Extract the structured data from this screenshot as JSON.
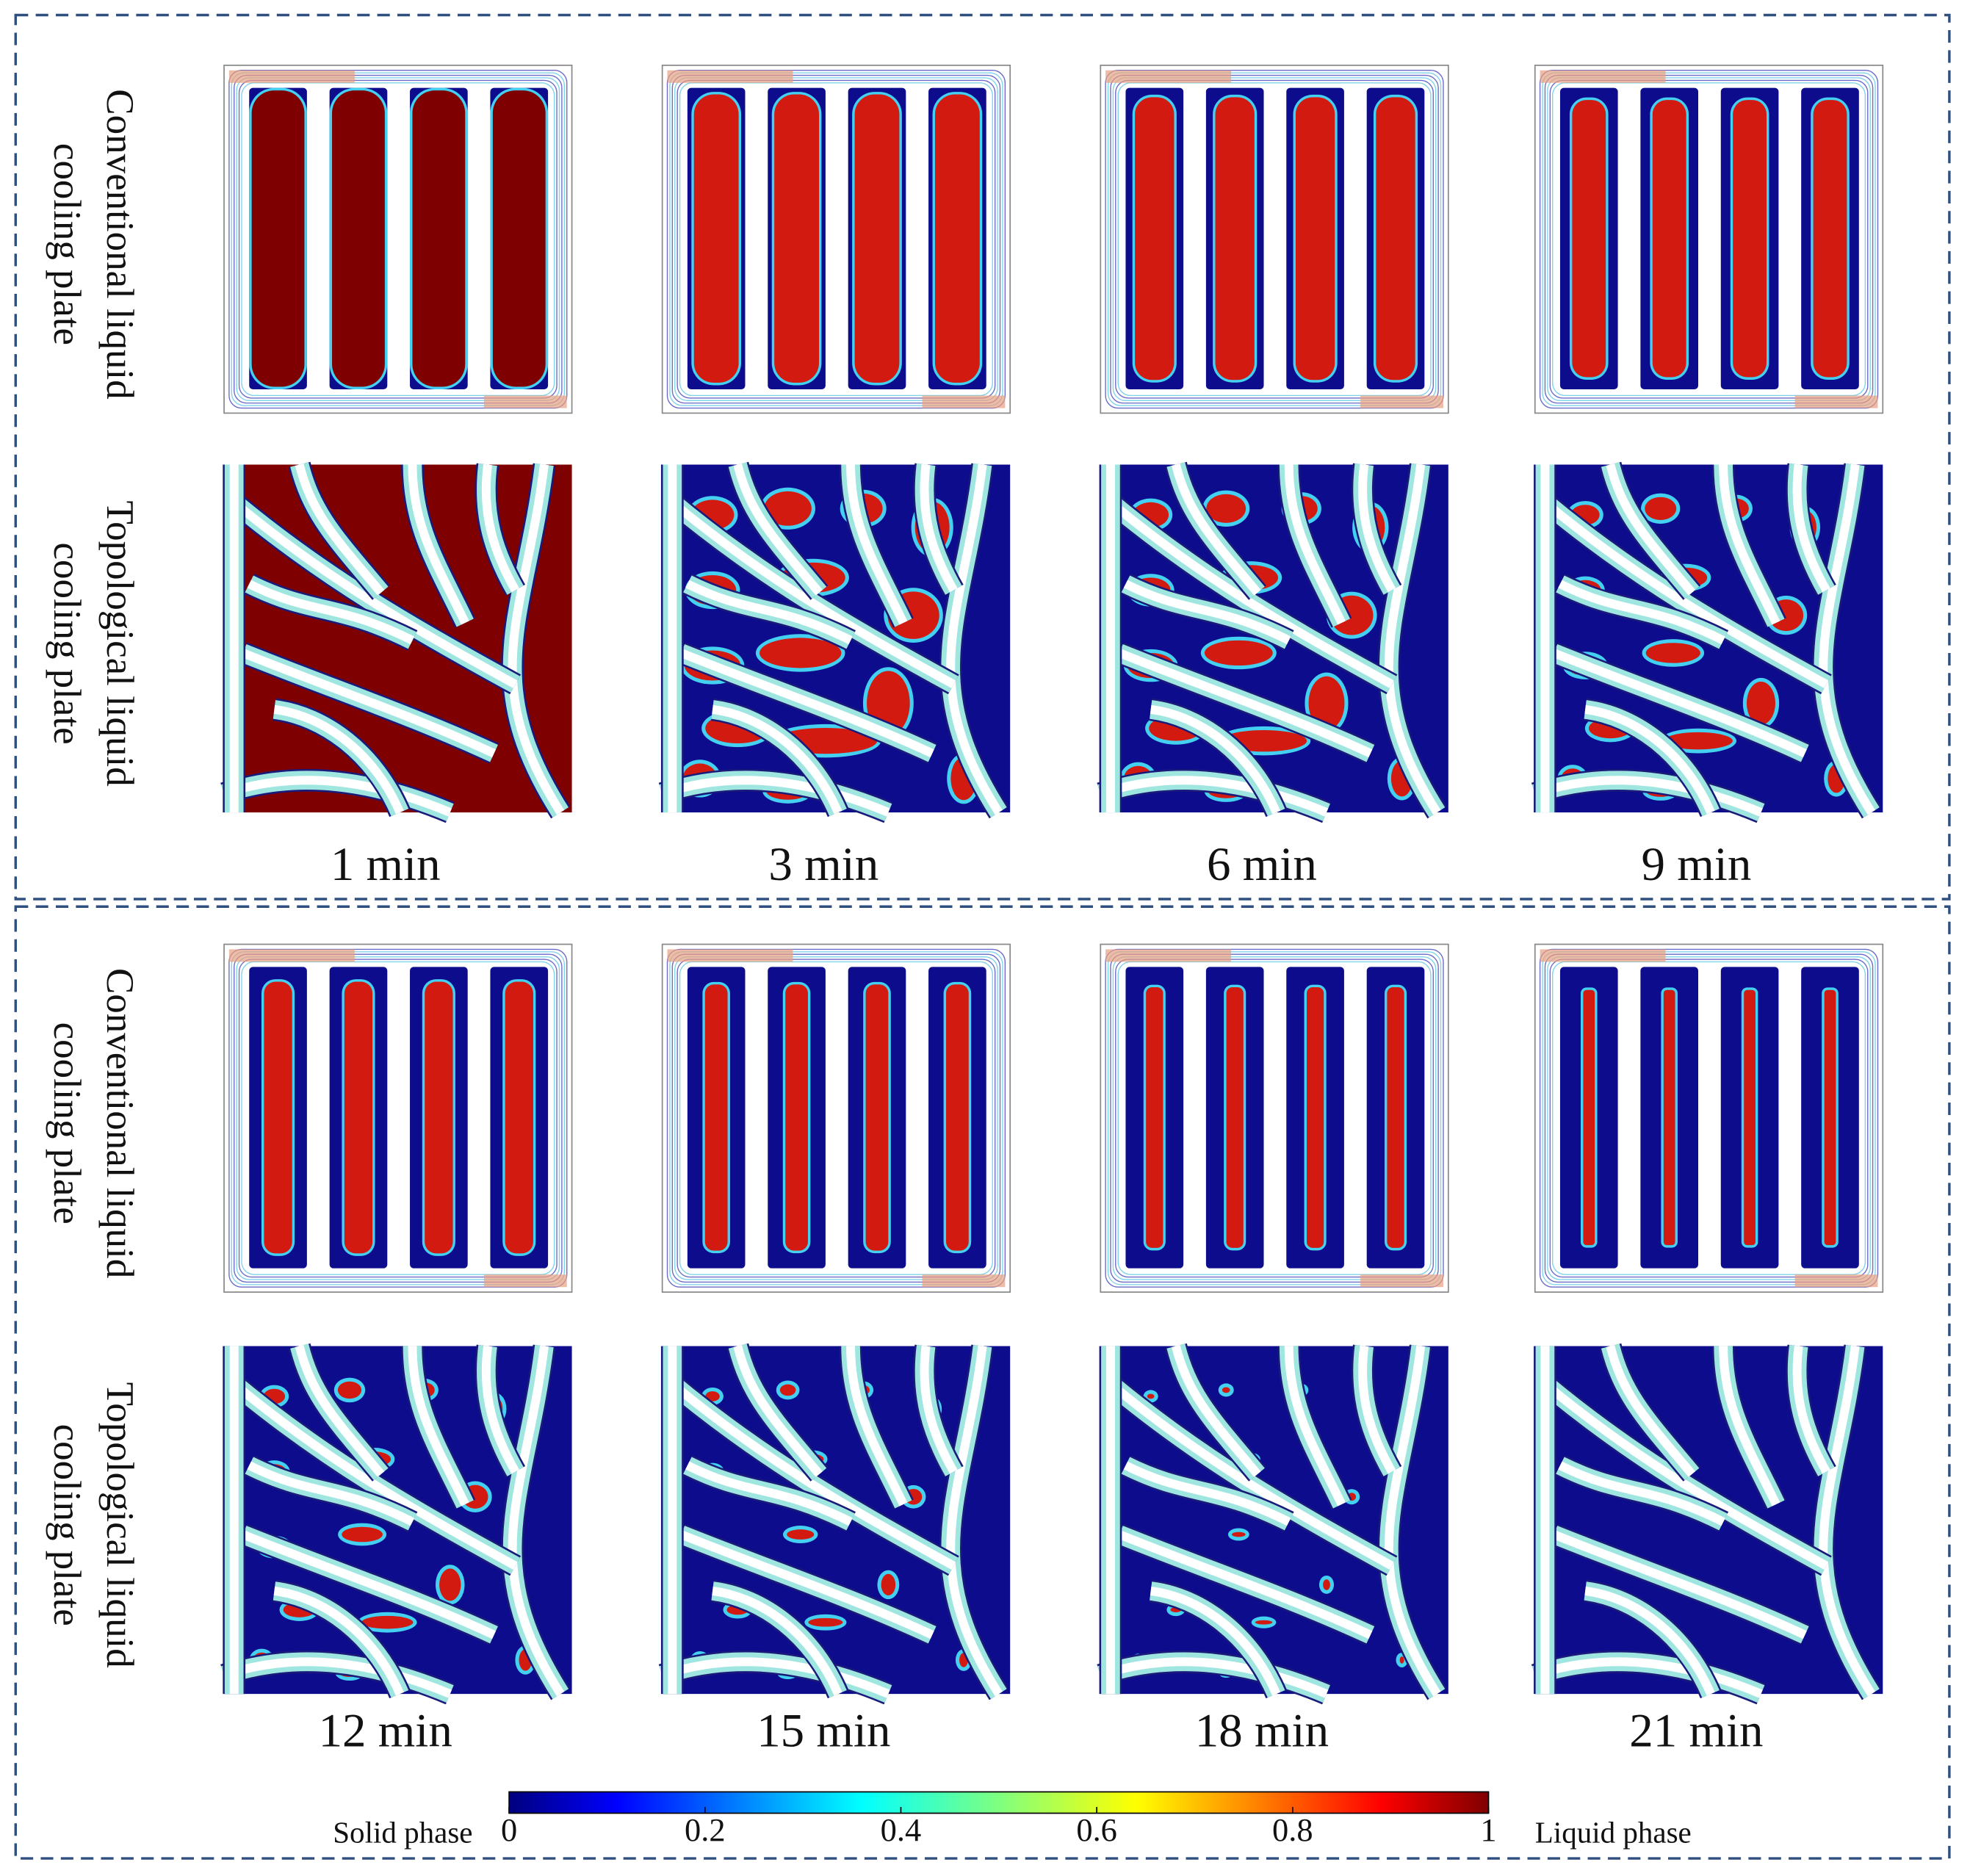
{
  "panels": [
    {
      "rows": [
        [
          "Conventional liquid",
          "cooling plate"
        ],
        [
          "Topological liquid",
          "cooling plate"
        ]
      ],
      "times": [
        "1 min",
        "3 min",
        "6 min",
        "9 min"
      ]
    },
    {
      "rows": [
        [
          "Conventional liquid",
          "cooling plate"
        ],
        [
          "Topological liquid",
          "cooling plate"
        ]
      ],
      "times": [
        "12 min",
        "15 min",
        "18 min",
        "21 min"
      ]
    }
  ],
  "colorbar": {
    "left_label": "Solid phase",
    "right_label": "Liquid phase",
    "lim": [
      0,
      1
    ],
    "ticks": [
      0,
      0.2,
      0.4,
      0.6,
      0.8,
      1
    ]
  }
}
